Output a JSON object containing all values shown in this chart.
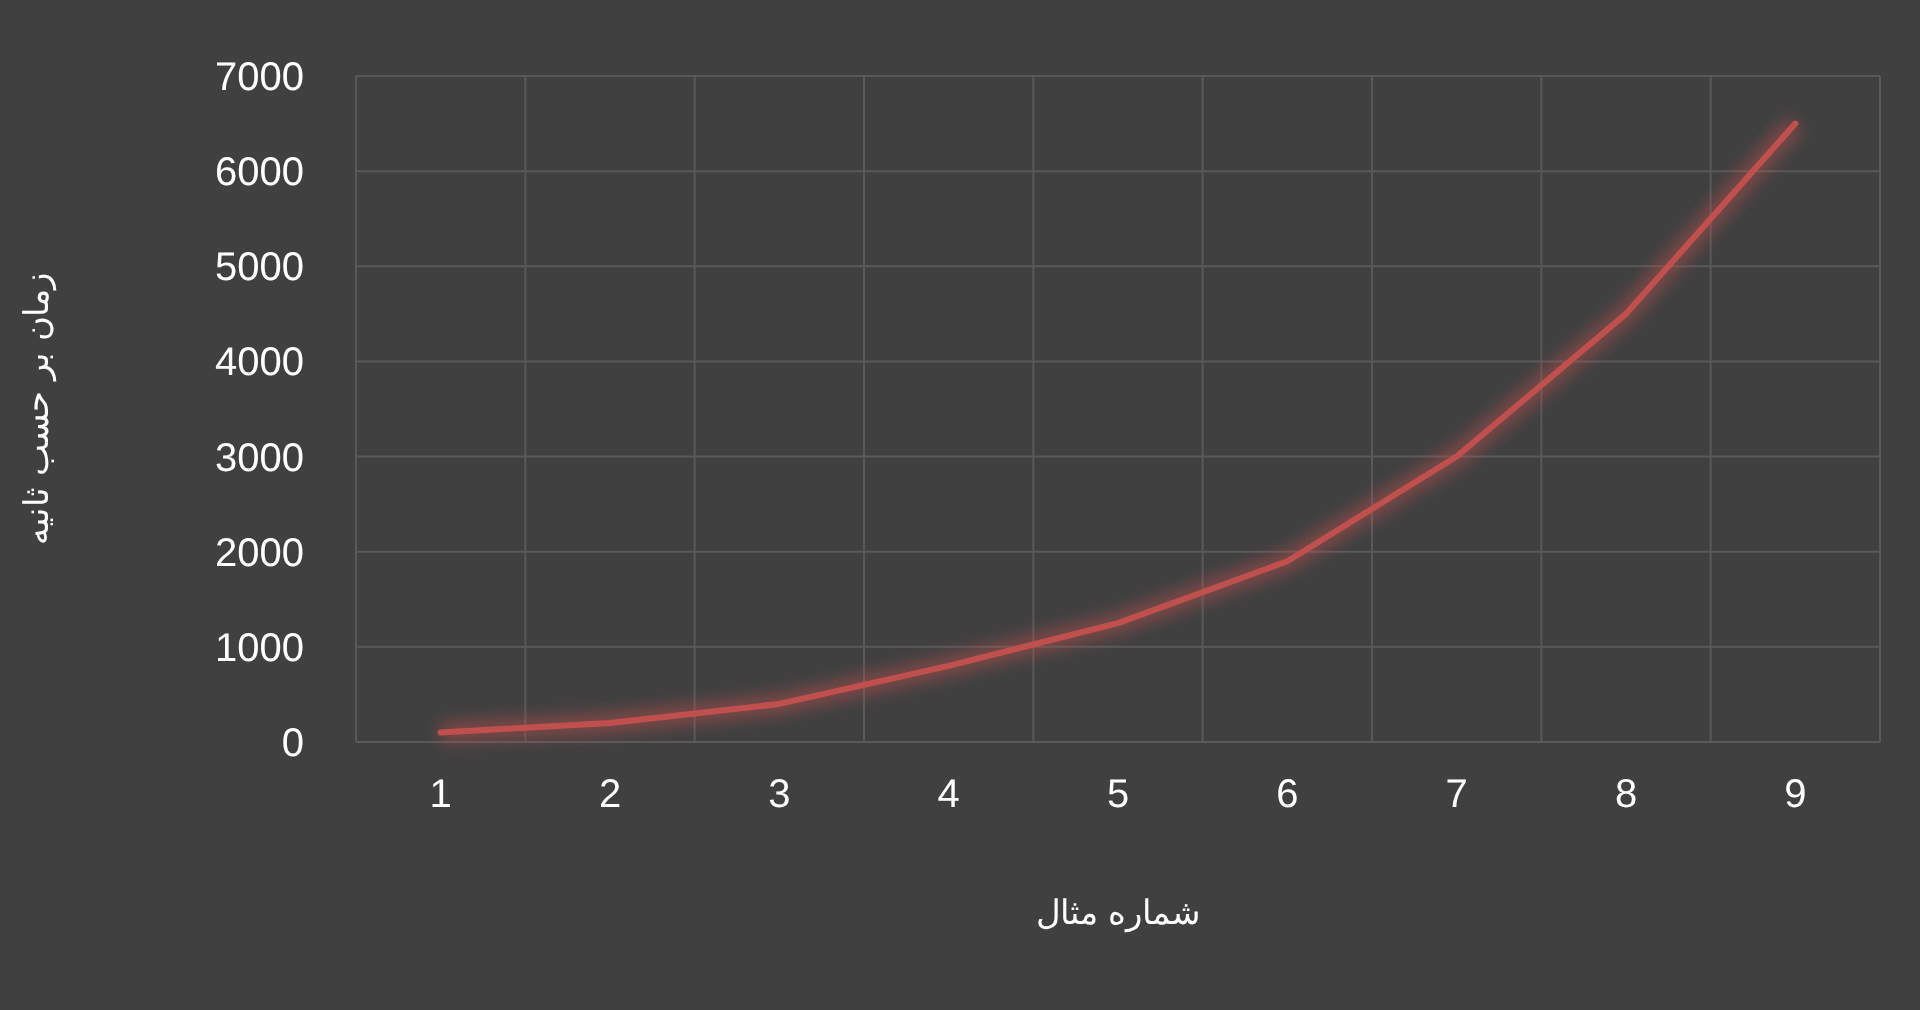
{
  "chart_data": {
    "type": "line",
    "xlabel": "شماره مثال",
    "ylabel": "زمان بر حسب ثانیه",
    "categories": [
      "1",
      "2",
      "3",
      "4",
      "5",
      "6",
      "7",
      "8",
      "9"
    ],
    "series": [
      {
        "color": "#c0504d",
        "values": [
          100,
          200,
          400,
          800,
          1250,
          1900,
          3000,
          4500,
          6500
        ]
      }
    ],
    "ylim": [
      0,
      7000
    ],
    "yticks": [
      0,
      1000,
      2000,
      3000,
      4000,
      5000,
      6000,
      7000
    ],
    "grid": true
  }
}
